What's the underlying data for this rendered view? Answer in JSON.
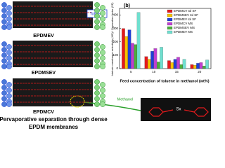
{
  "chart_data": {
    "type": "bar",
    "annotation": "(b)",
    "y_label": "Intrinsic membrane selectivity (MS) / Separation factor (SF)",
    "x_label": "Feed concentration of toluene in methanol (wt%)",
    "categories": [
      "5",
      "10",
      "15",
      "20"
    ],
    "series": [
      {
        "name": "EPDMCV tol SF",
        "color": "#e41a1c",
        "values": [
          300,
          90,
          60,
          30
        ]
      },
      {
        "name": "EPDMSEV tol SF",
        "color": "#f5c400",
        "values": [
          240,
          70,
          45,
          25
        ]
      },
      {
        "name": "EPDMEV tol SF",
        "color": "#1f3fd6",
        "values": [
          290,
          130,
          70,
          40
        ]
      },
      {
        "name": "EPDMCV MS",
        "color": "#c03fd0",
        "values": [
          190,
          150,
          85,
          45
        ]
      },
      {
        "name": "EPDMSEV MS",
        "color": "#4caf3a",
        "values": [
          180,
          50,
          30,
          20
        ]
      },
      {
        "name": "EPDMEV MS",
        "color": "#6fe0d0",
        "values": [
          420,
          160,
          70,
          65
        ]
      }
    ],
    "ylim": [
      0,
      450
    ],
    "yticks": [
      0,
      100,
      200,
      300,
      400
    ],
    "legend": "upper-right"
  },
  "diagram": {
    "membranes": [
      "EPDMEV",
      "EPDMSEV",
      "EPDMCV"
    ],
    "toluene": "Toluene",
    "methanol": "Methanol",
    "crosslink": "Sx",
    "caption": [
      "Pervaporative separation through dense",
      "EPDM membranes"
    ]
  }
}
